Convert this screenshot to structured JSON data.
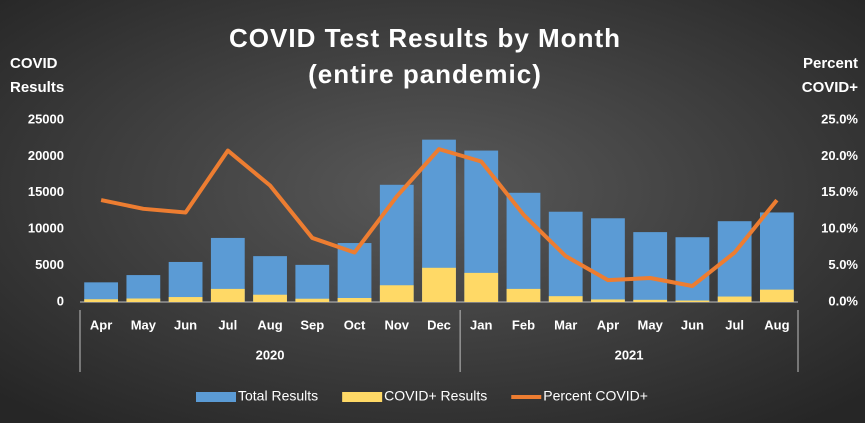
{
  "chart_data": {
    "type": "bar-line",
    "title": [
      "COVID Test Results by Month",
      "(entire pandemic)"
    ],
    "y_label": [
      "COVID",
      "Results"
    ],
    "y2_label": [
      "Percent",
      "COVID+"
    ],
    "categories": [
      "Apr",
      "May",
      "Jun",
      "Jul",
      "Aug",
      "Sep",
      "Oct",
      "Nov",
      "Dec",
      "Jan",
      "Feb",
      "Mar",
      "Apr",
      "May",
      "Jun",
      "Jul",
      "Aug"
    ],
    "groups": [
      {
        "label": "2020",
        "count": 9
      },
      {
        "label": "2021",
        "count": 8
      }
    ],
    "series": [
      {
        "name": "Total Results",
        "color": "#5b9bd5",
        "kind": "bar",
        "values": [
          2700,
          3700,
          5500,
          8800,
          6300,
          5100,
          8100,
          16100,
          22300,
          20800,
          15000,
          12400,
          11500,
          9600,
          8900,
          11100,
          12300
        ]
      },
      {
        "name": "COVID+ Results",
        "color": "#ffd966",
        "kind": "bar",
        "values": [
          380,
          480,
          680,
          1800,
          1000,
          450,
          550,
          2300,
          4700,
          4000,
          1800,
          800,
          350,
          300,
          200,
          750,
          1700
        ]
      },
      {
        "name": "Percent COVID+",
        "color": "#ed7d31",
        "kind": "line",
        "axis": "y2",
        "values": [
          14.0,
          12.8,
          12.3,
          20.8,
          16.0,
          8.8,
          6.8,
          14.5,
          21.0,
          19.3,
          12.0,
          6.3,
          3.0,
          3.3,
          2.2,
          6.8,
          14.0
        ]
      }
    ],
    "ylim": [
      0,
      25000
    ],
    "yticks": [
      0,
      5000,
      10000,
      15000,
      20000,
      25000
    ],
    "y2lim": [
      0,
      25
    ],
    "y2ticks": [
      {
        "value": 0,
        "label": "0.0%"
      },
      {
        "value": 5,
        "label": "5.0%"
      },
      {
        "value": 10,
        "label": "10.0%"
      },
      {
        "value": 15,
        "label": "15.0%"
      },
      {
        "value": 20,
        "label": "20.0%"
      },
      {
        "value": 25,
        "label": "25.0%"
      }
    ],
    "legend": "bottom"
  }
}
